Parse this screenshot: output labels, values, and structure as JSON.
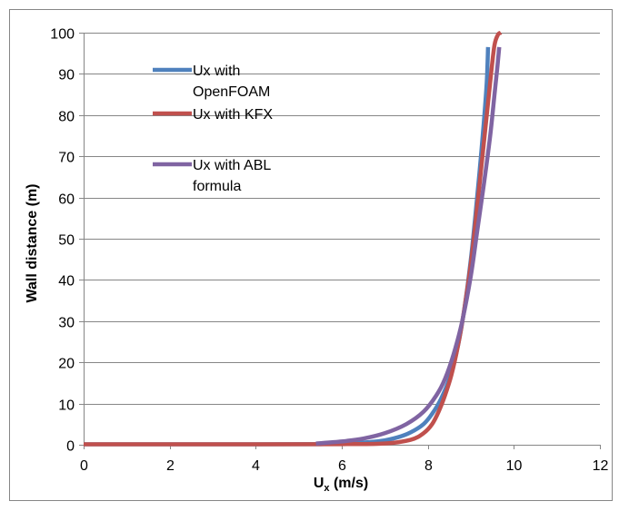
{
  "chart_data": {
    "type": "line",
    "title": "",
    "xlabel": "U",
    "xlabel_sub": "x",
    "xlabel_unit": " (m/s)",
    "ylabel": "Wall distance (m)",
    "xlim": [
      0,
      12
    ],
    "ylim": [
      0,
      100
    ],
    "xticks": [
      "0",
      "2",
      "4",
      "6",
      "8",
      "10",
      "12"
    ],
    "yticks": [
      "0",
      "10",
      "20",
      "30",
      "40",
      "50",
      "60",
      "70",
      "80",
      "90",
      "100"
    ],
    "grid": "horizontal",
    "legend_position": "upper-left-inside",
    "series": [
      {
        "name": "Ux with OpenFOAM",
        "color": "#4f81bd",
        "points": [
          [
            0,
            0.1
          ],
          [
            4,
            0.1
          ],
          [
            5.5,
            0.15
          ],
          [
            6.3,
            0.4
          ],
          [
            6.9,
            0.9
          ],
          [
            7.3,
            1.8
          ],
          [
            7.6,
            3
          ],
          [
            7.9,
            5
          ],
          [
            8.1,
            7.5
          ],
          [
            8.3,
            11
          ],
          [
            8.5,
            16
          ],
          [
            8.7,
            24
          ],
          [
            8.85,
            33
          ],
          [
            9.0,
            45
          ],
          [
            9.1,
            55
          ],
          [
            9.2,
            66
          ],
          [
            9.3,
            78
          ],
          [
            9.37,
            88
          ],
          [
            9.4,
            96.5
          ]
        ]
      },
      {
        "name": "Ux with KFX",
        "color": "#c0504d",
        "points": [
          [
            0,
            0.1
          ],
          [
            4,
            0.1
          ],
          [
            6,
            0.15
          ],
          [
            7,
            0.3
          ],
          [
            7.6,
            1.2
          ],
          [
            7.9,
            2.8
          ],
          [
            8.1,
            5
          ],
          [
            8.25,
            8
          ],
          [
            8.4,
            12
          ],
          [
            8.55,
            17
          ],
          [
            8.7,
            24
          ],
          [
            8.85,
            33
          ],
          [
            9.0,
            44
          ],
          [
            9.12,
            55
          ],
          [
            9.25,
            68
          ],
          [
            9.37,
            80
          ],
          [
            9.47,
            90
          ],
          [
            9.55,
            97
          ],
          [
            9.63,
            99.5
          ],
          [
            9.7,
            100
          ]
        ]
      },
      {
        "name": "Ux with ABL formula",
        "color": "#8064a2",
        "points": [
          [
            5.4,
            0.3
          ],
          [
            6.0,
            0.8
          ],
          [
            6.5,
            1.5
          ],
          [
            7.0,
            2.8
          ],
          [
            7.5,
            5
          ],
          [
            7.9,
            8
          ],
          [
            8.2,
            12
          ],
          [
            8.4,
            16
          ],
          [
            8.6,
            22
          ],
          [
            8.8,
            30
          ],
          [
            9.0,
            41
          ],
          [
            9.15,
            52
          ],
          [
            9.3,
            63
          ],
          [
            9.45,
            75
          ],
          [
            9.55,
            85
          ],
          [
            9.62,
            92
          ],
          [
            9.66,
            96.5
          ]
        ]
      }
    ]
  }
}
